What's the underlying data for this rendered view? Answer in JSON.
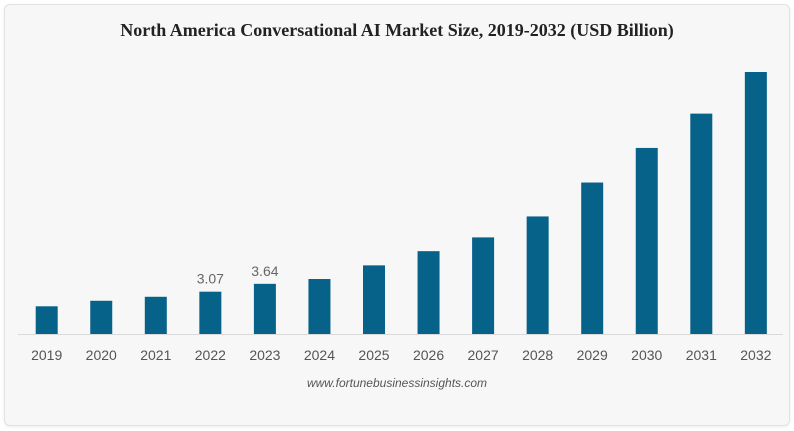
{
  "chart_data": {
    "type": "bar",
    "title": "North America Conversational AI Market Size, 2019-2032 (USD Billion)",
    "xlabel": "",
    "ylabel": "",
    "categories": [
      "2019",
      "2020",
      "2021",
      "2022",
      "2023",
      "2024",
      "2025",
      "2026",
      "2027",
      "2028",
      "2029",
      "2030",
      "2031",
      "2032"
    ],
    "values": [
      2.01,
      2.41,
      2.7,
      3.07,
      3.64,
      3.99,
      4.98,
      6.01,
      7.01,
      8.53,
      10.99,
      13.5,
      15.99,
      19.01
    ],
    "data_labels": {
      "2022": "3.07",
      "2023": "3.64"
    },
    "ylim": [
      0,
      19.01
    ],
    "grid": false,
    "y_axis_visible": false,
    "bar_color": "#066289",
    "source": "www.fortunebusinessinsights.com"
  }
}
